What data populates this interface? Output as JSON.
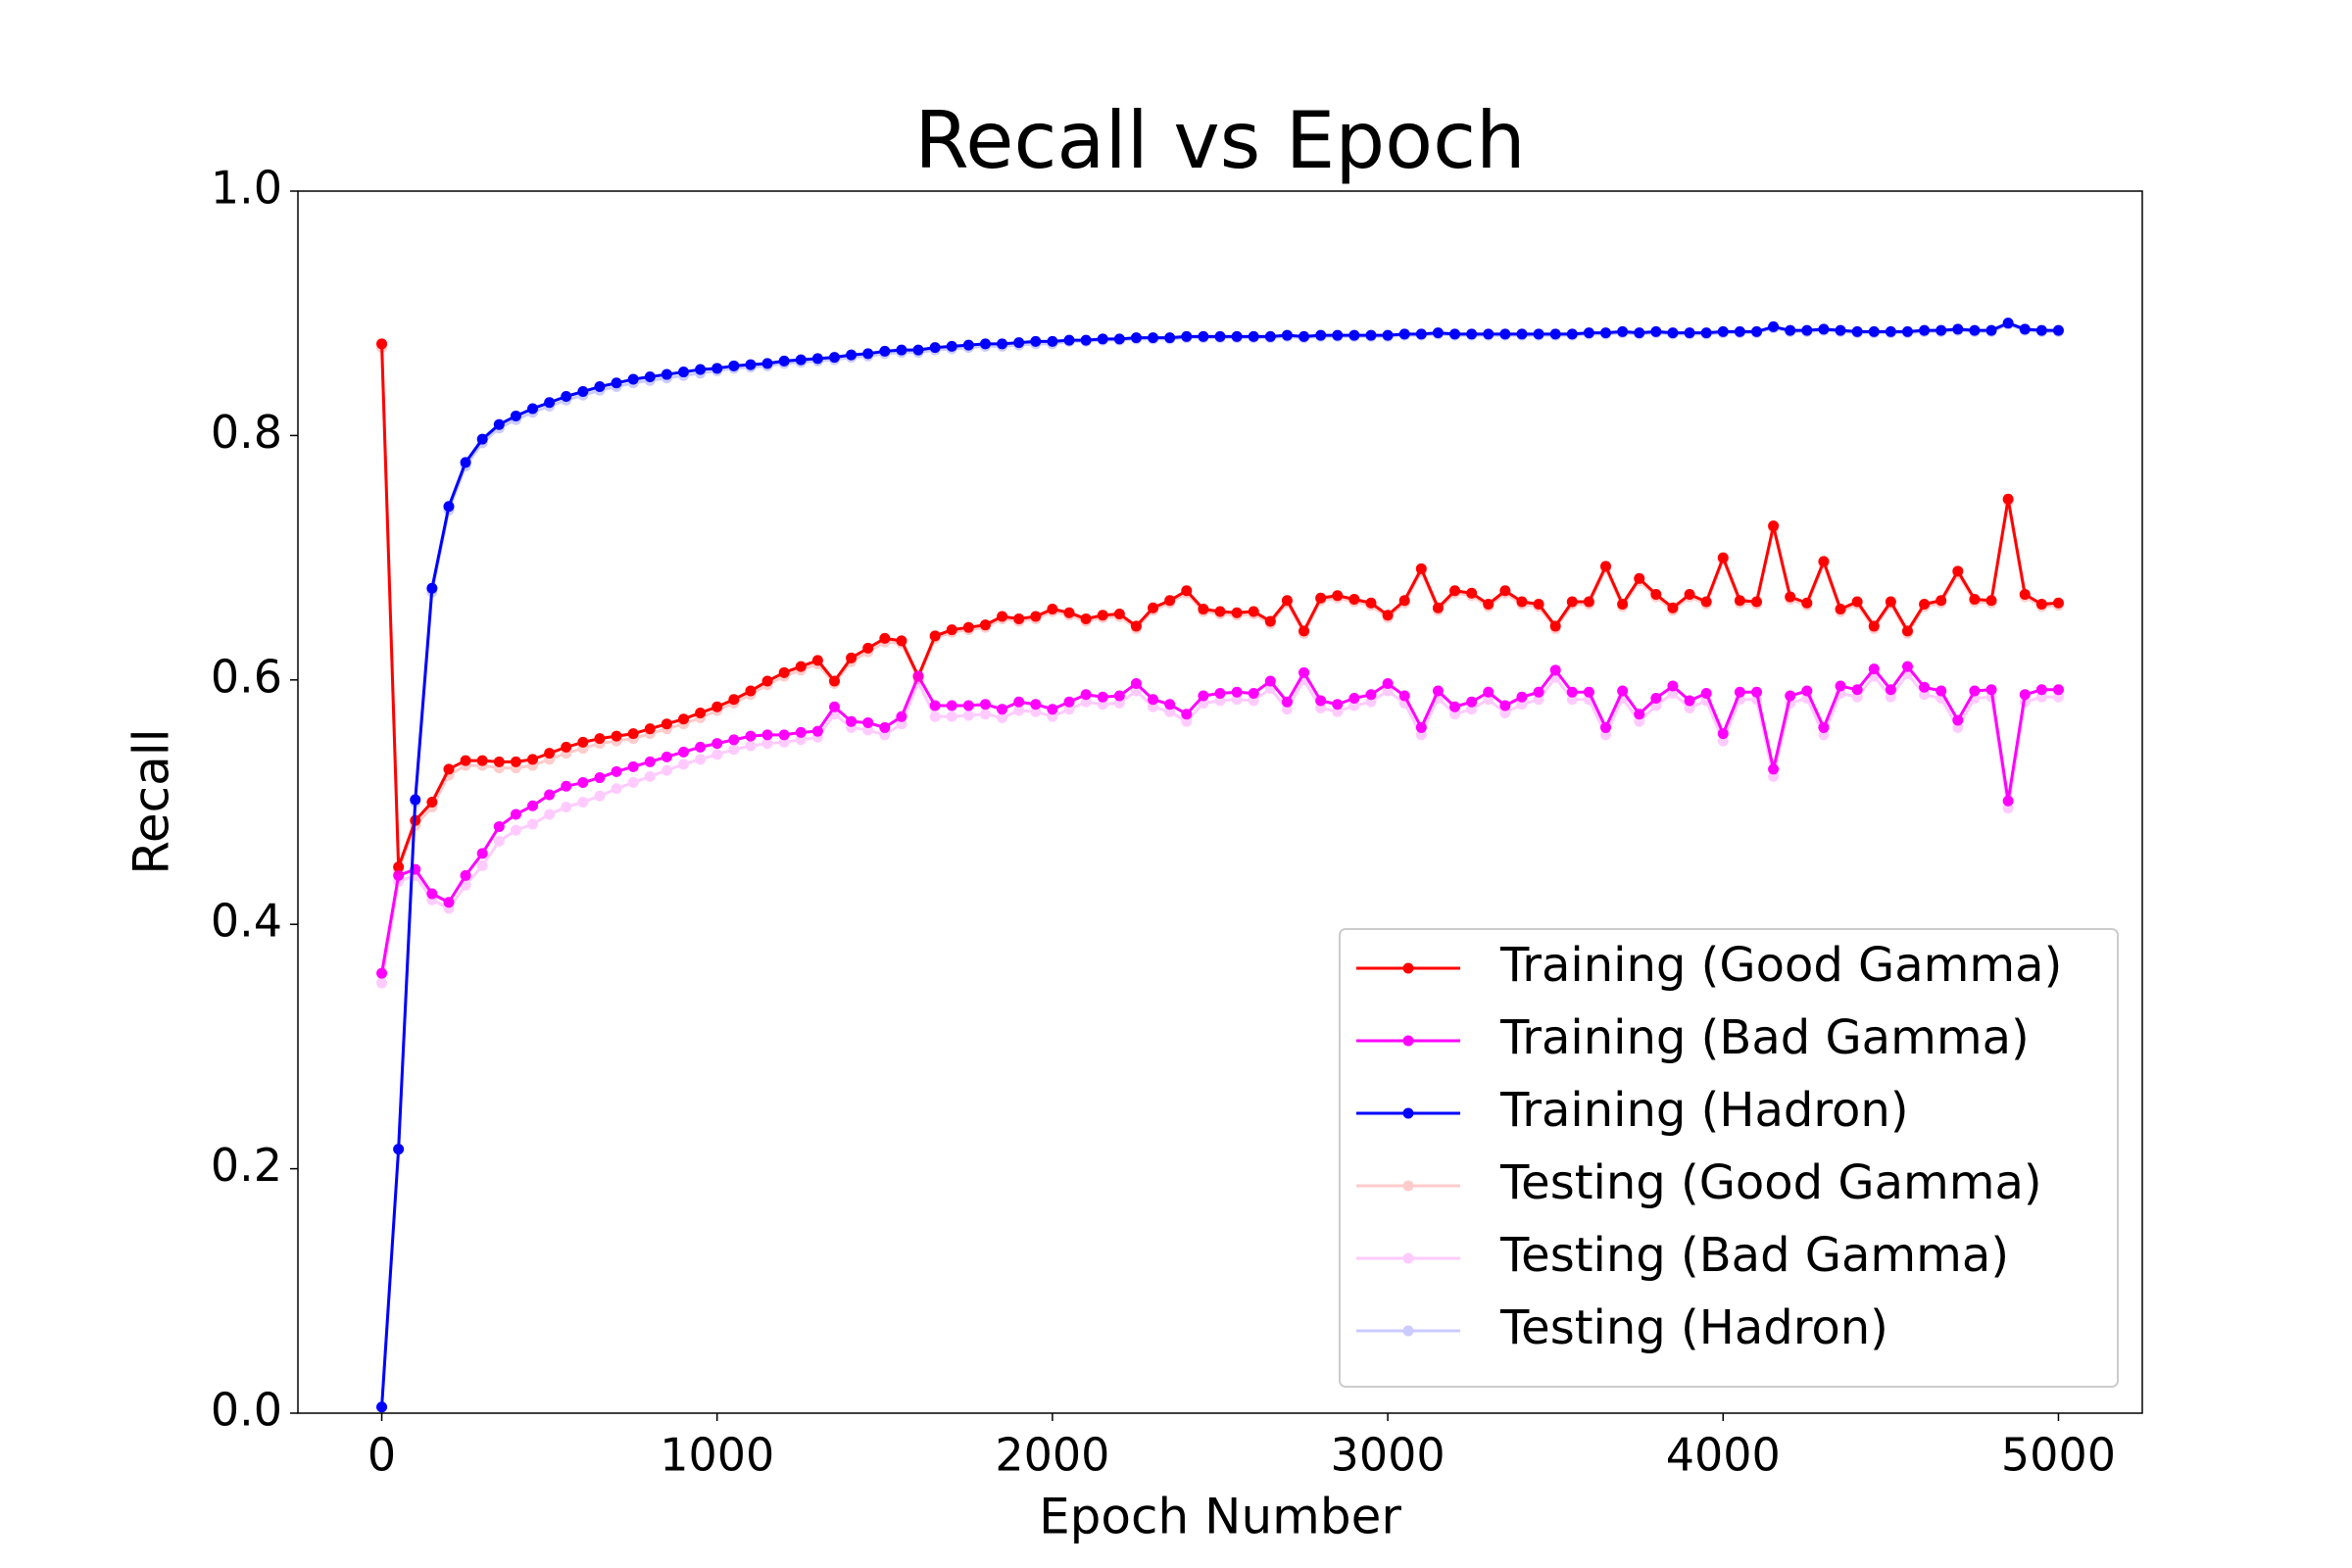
{
  "chart_data": {
    "type": "line",
    "title": "Recall vs Epoch",
    "x_label": "Epoch Number",
    "y_label": "Recall",
    "x": [
      0,
      50,
      100,
      150,
      200,
      250,
      300,
      350,
      400,
      450,
      500,
      550,
      600,
      650,
      700,
      750,
      800,
      850,
      900,
      950,
      1000,
      1050,
      1100,
      1150,
      1200,
      1250,
      1300,
      1350,
      1400,
      1450,
      1500,
      1550,
      1600,
      1650,
      1700,
      1750,
      1800,
      1850,
      1900,
      1950,
      2000,
      2050,
      2100,
      2150,
      2200,
      2250,
      2300,
      2350,
      2400,
      2450,
      2500,
      2550,
      2600,
      2650,
      2700,
      2750,
      2800,
      2850,
      2900,
      2950,
      3000,
      3050,
      3100,
      3150,
      3200,
      3250,
      3300,
      3350,
      3400,
      3450,
      3500,
      3550,
      3600,
      3650,
      3700,
      3750,
      3800,
      3850,
      3900,
      3950,
      4000,
      4050,
      4100,
      4150,
      4200,
      4250,
      4300,
      4350,
      4400,
      4450,
      4500,
      4550,
      4600,
      4650,
      4700,
      4750,
      4800,
      4850,
      4900,
      4950,
      5000
    ],
    "series": [
      {
        "name": "Training (Good Gamma)",
        "color": "#ff0000",
        "alpha": 1,
        "values": [
          0.875,
          0.447,
          0.485,
          0.5,
          0.527,
          0.534,
          0.534,
          0.533,
          0.533,
          0.535,
          0.54,
          0.545,
          0.549,
          0.552,
          0.554,
          0.556,
          0.56,
          0.564,
          0.568,
          0.573,
          0.578,
          0.584,
          0.591,
          0.599,
          0.606,
          0.611,
          0.616,
          0.599,
          0.618,
          0.626,
          0.634,
          0.632,
          0.603,
          0.636,
          0.641,
          0.643,
          0.645,
          0.652,
          0.65,
          0.652,
          0.658,
          0.655,
          0.65,
          0.653,
          0.654,
          0.644,
          0.659,
          0.665,
          0.673,
          0.658,
          0.656,
          0.655,
          0.656,
          0.648,
          0.665,
          0.64,
          0.667,
          0.669,
          0.666,
          0.663,
          0.653,
          0.665,
          0.691,
          0.659,
          0.673,
          0.671,
          0.662,
          0.673,
          0.664,
          0.662,
          0.644,
          0.664,
          0.664,
          0.693,
          0.662,
          0.683,
          0.67,
          0.659,
          0.67,
          0.664,
          0.7,
          0.665,
          0.664,
          0.726,
          0.668,
          0.663,
          0.697,
          0.658,
          0.664,
          0.644,
          0.664,
          0.64,
          0.662,
          0.665,
          0.689,
          0.666,
          0.665,
          0.748,
          0.67,
          0.662,
          0.663
        ]
      },
      {
        "name": "Training (Bad Gamma)",
        "color": "#ff00ff",
        "alpha": 1,
        "values": [
          0.36,
          0.44,
          0.445,
          0.425,
          0.418,
          0.44,
          0.458,
          0.48,
          0.49,
          0.497,
          0.506,
          0.513,
          0.516,
          0.52,
          0.525,
          0.529,
          0.533,
          0.537,
          0.541,
          0.545,
          0.548,
          0.551,
          0.554,
          0.555,
          0.555,
          0.557,
          0.558,
          0.578,
          0.566,
          0.565,
          0.561,
          0.57,
          0.603,
          0.579,
          0.579,
          0.579,
          0.58,
          0.576,
          0.582,
          0.58,
          0.576,
          0.582,
          0.588,
          0.586,
          0.587,
          0.597,
          0.584,
          0.58,
          0.572,
          0.587,
          0.589,
          0.59,
          0.589,
          0.599,
          0.582,
          0.606,
          0.583,
          0.58,
          0.585,
          0.588,
          0.597,
          0.587,
          0.561,
          0.591,
          0.578,
          0.582,
          0.59,
          0.579,
          0.586,
          0.59,
          0.608,
          0.59,
          0.59,
          0.561,
          0.591,
          0.572,
          0.585,
          0.595,
          0.583,
          0.589,
          0.556,
          0.59,
          0.59,
          0.527,
          0.587,
          0.591,
          0.561,
          0.595,
          0.592,
          0.609,
          0.592,
          0.611,
          0.594,
          0.591,
          0.567,
          0.591,
          0.592,
          0.501,
          0.588,
          0.592,
          0.592
        ]
      },
      {
        "name": "Training (Hadron)",
        "color": "#0000ff",
        "alpha": 1,
        "values": [
          0.005,
          0.216,
          0.502,
          0.675,
          0.742,
          0.778,
          0.797,
          0.809,
          0.816,
          0.822,
          0.827,
          0.832,
          0.836,
          0.84,
          0.843,
          0.846,
          0.848,
          0.85,
          0.852,
          0.854,
          0.855,
          0.857,
          0.858,
          0.859,
          0.861,
          0.862,
          0.863,
          0.864,
          0.866,
          0.867,
          0.869,
          0.87,
          0.87,
          0.872,
          0.873,
          0.874,
          0.875,
          0.875,
          0.876,
          0.877,
          0.877,
          0.878,
          0.878,
          0.879,
          0.879,
          0.88,
          0.88,
          0.88,
          0.881,
          0.881,
          0.881,
          0.881,
          0.881,
          0.881,
          0.882,
          0.881,
          0.882,
          0.882,
          0.882,
          0.882,
          0.882,
          0.883,
          0.883,
          0.884,
          0.883,
          0.883,
          0.883,
          0.883,
          0.883,
          0.883,
          0.883,
          0.883,
          0.884,
          0.884,
          0.885,
          0.884,
          0.885,
          0.884,
          0.884,
          0.884,
          0.885,
          0.885,
          0.885,
          0.889,
          0.886,
          0.886,
          0.887,
          0.886,
          0.885,
          0.885,
          0.885,
          0.885,
          0.886,
          0.886,
          0.887,
          0.886,
          0.886,
          0.892,
          0.887,
          0.886,
          0.886
        ]
      },
      {
        "name": "Testing (Good Gamma)",
        "color": "#ff0000",
        "alpha": 0.2,
        "values": [
          0.872,
          0.445,
          0.481,
          0.496,
          0.522,
          0.53,
          0.53,
          0.528,
          0.528,
          0.53,
          0.535,
          0.54,
          0.544,
          0.548,
          0.55,
          0.552,
          0.556,
          0.56,
          0.564,
          0.569,
          0.575,
          0.581,
          0.588,
          0.596,
          0.603,
          0.608,
          0.613,
          0.597,
          0.615,
          0.623,
          0.631,
          0.63,
          0.601,
          0.634,
          0.639,
          0.641,
          0.643,
          0.65,
          0.648,
          0.65,
          0.656,
          0.653,
          0.648,
          0.651,
          0.652,
          0.642,
          0.657,
          0.663,
          0.671,
          0.656,
          0.654,
          0.653,
          0.654,
          0.646,
          0.663,
          0.638,
          0.665,
          0.667,
          0.664,
          0.661,
          0.651,
          0.663,
          0.689,
          0.657,
          0.671,
          0.669,
          0.66,
          0.671,
          0.662,
          0.66,
          0.642,
          0.662,
          0.662,
          0.691,
          0.66,
          0.681,
          0.668,
          0.657,
          0.668,
          0.662,
          0.698,
          0.663,
          0.662,
          0.724,
          0.666,
          0.661,
          0.695,
          0.656,
          0.662,
          0.642,
          0.662,
          0.638,
          0.66,
          0.663,
          0.687,
          0.664,
          0.663,
          0.746,
          0.668,
          0.66,
          0.661
        ]
      },
      {
        "name": "Testing (Bad Gamma)",
        "color": "#ff00ff",
        "alpha": 0.2,
        "values": [
          0.352,
          0.435,
          0.44,
          0.42,
          0.413,
          0.432,
          0.448,
          0.468,
          0.477,
          0.482,
          0.49,
          0.496,
          0.5,
          0.505,
          0.511,
          0.516,
          0.521,
          0.526,
          0.531,
          0.535,
          0.539,
          0.543,
          0.546,
          0.548,
          0.549,
          0.551,
          0.553,
          0.572,
          0.561,
          0.559,
          0.555,
          0.564,
          0.598,
          0.57,
          0.57,
          0.571,
          0.572,
          0.569,
          0.575,
          0.574,
          0.57,
          0.576,
          0.582,
          0.58,
          0.581,
          0.591,
          0.578,
          0.574,
          0.566,
          0.581,
          0.583,
          0.584,
          0.583,
          0.593,
          0.576,
          0.6,
          0.577,
          0.574,
          0.579,
          0.582,
          0.591,
          0.581,
          0.555,
          0.585,
          0.572,
          0.576,
          0.584,
          0.573,
          0.58,
          0.584,
          0.602,
          0.584,
          0.584,
          0.555,
          0.585,
          0.566,
          0.579,
          0.589,
          0.577,
          0.583,
          0.55,
          0.584,
          0.584,
          0.521,
          0.581,
          0.585,
          0.555,
          0.589,
          0.586,
          0.603,
          0.586,
          0.605,
          0.588,
          0.585,
          0.561,
          0.585,
          0.586,
          0.495,
          0.582,
          0.586,
          0.586
        ]
      },
      {
        "name": "Testing (Hadron)",
        "color": "#0000ff",
        "alpha": 0.2,
        "values": [
          0.005,
          0.216,
          0.5,
          0.672,
          0.739,
          0.775,
          0.794,
          0.806,
          0.813,
          0.819,
          0.824,
          0.829,
          0.833,
          0.837,
          0.84,
          0.843,
          0.845,
          0.847,
          0.849,
          0.851,
          0.853,
          0.855,
          0.856,
          0.857,
          0.859,
          0.86,
          0.861,
          0.862,
          0.864,
          0.865,
          0.867,
          0.868,
          0.868,
          0.87,
          0.871,
          0.872,
          0.873,
          0.873,
          0.874,
          0.875,
          0.875,
          0.877,
          0.877,
          0.878,
          0.878,
          0.879,
          0.879,
          0.879,
          0.88,
          0.88,
          0.88,
          0.88,
          0.88,
          0.88,
          0.881,
          0.88,
          0.881,
          0.881,
          0.881,
          0.881,
          0.881,
          0.882,
          0.882,
          0.883,
          0.882,
          0.882,
          0.882,
          0.882,
          0.882,
          0.882,
          0.882,
          0.882,
          0.883,
          0.883,
          0.884,
          0.883,
          0.884,
          0.883,
          0.883,
          0.883,
          0.884,
          0.884,
          0.884,
          0.888,
          0.885,
          0.885,
          0.886,
          0.885,
          0.884,
          0.884,
          0.884,
          0.884,
          0.885,
          0.885,
          0.886,
          0.885,
          0.885,
          0.891,
          0.886,
          0.885,
          0.885
        ]
      }
    ],
    "xlim": [
      -250,
      5250
    ],
    "ylim": [
      0,
      1
    ],
    "xticks": [
      0,
      1000,
      2000,
      3000,
      4000,
      5000
    ],
    "yticks": [
      {
        "value": 0,
        "label": "0.0"
      },
      0.2,
      0.4,
      0.6,
      0.8,
      {
        "value": 1,
        "label": "1.0"
      }
    ],
    "legend": "lower right"
  }
}
